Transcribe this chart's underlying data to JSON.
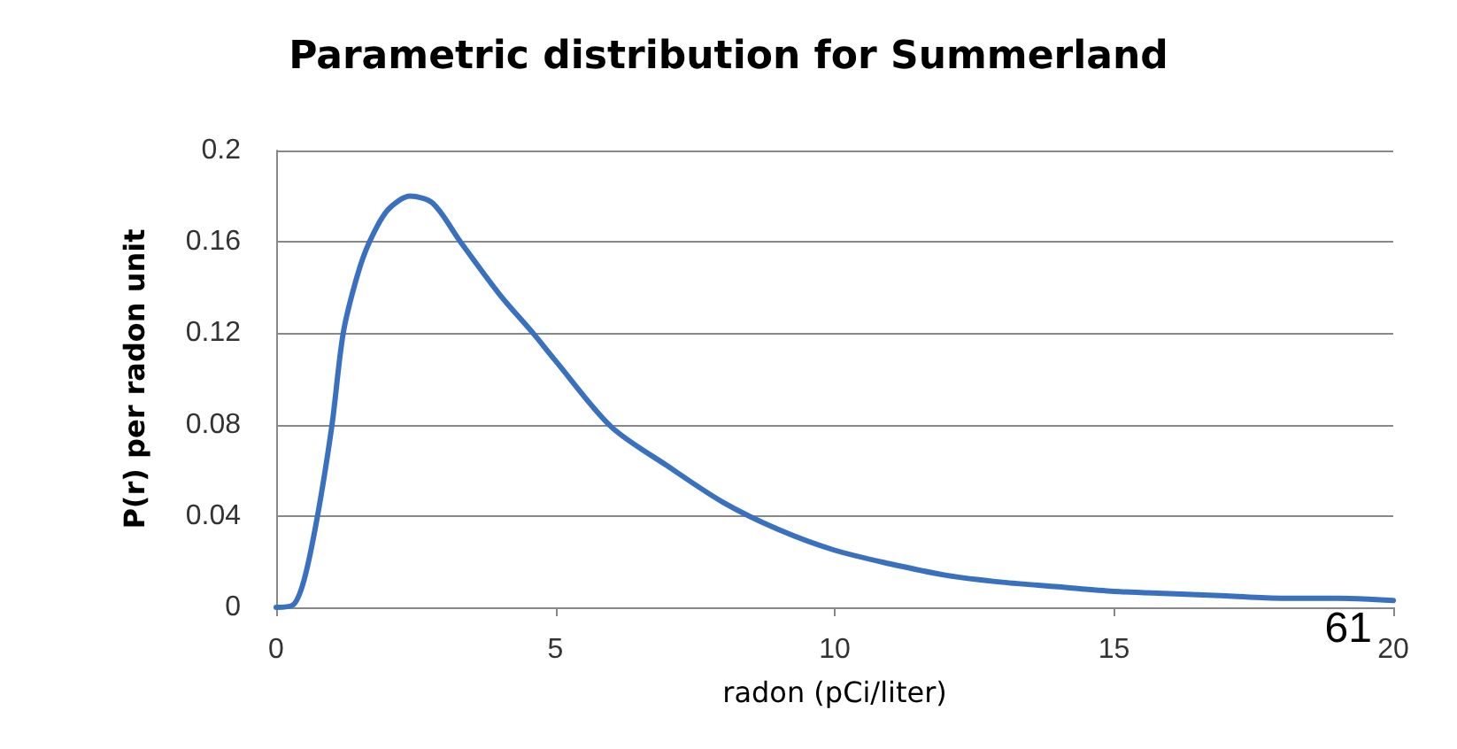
{
  "chart_data": {
    "type": "line",
    "title": "Parametric distribution for Summerland",
    "xlabel": "radon (pCi/liter)",
    "ylabel": "P(r) per radon unit",
    "annotations": [
      "61"
    ],
    "x": [
      0,
      0.3,
      0.5,
      0.74,
      1.0,
      1.2,
      1.45,
      1.67,
      2.0,
      2.4,
      2.8,
      3.3,
      4,
      4.6,
      5,
      6,
      7,
      8,
      9,
      10,
      11,
      12,
      13,
      14,
      15,
      16,
      17,
      18,
      19,
      20
    ],
    "series": [
      {
        "color": "#3a70c0",
        "values": [
          0,
          0.001,
          0.012,
          0.04,
          0.08,
          0.12,
          0.145,
          0.16,
          0.174,
          0.18,
          0.177,
          0.16,
          0.137,
          0.12,
          0.108,
          0.079,
          0.062,
          0.046,
          0.034,
          0.025,
          0.019,
          0.014,
          0.011,
          0.009,
          0.007,
          0.006,
          0.005,
          0.004,
          0.004,
          0.003
        ]
      }
    ],
    "xlim": [
      0,
      20
    ],
    "xticks": [
      0,
      5,
      10,
      15,
      20
    ],
    "ylim": [
      0,
      0.2
    ],
    "yticks": [
      0,
      0.04,
      0.08,
      0.12,
      0.16,
      0.2
    ],
    "grid": "y",
    "marker": "none",
    "line_style": "solid"
  }
}
